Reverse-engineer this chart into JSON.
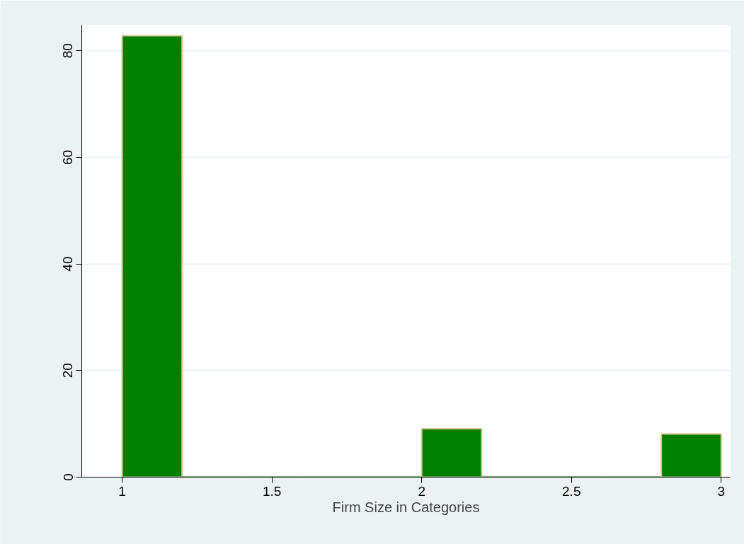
{
  "chart_data": {
    "type": "histogram",
    "xlabel": "Firm Size in Categories",
    "bins": [
      1,
      1.2,
      1.4,
      1.6,
      1.8,
      2,
      2.2,
      2.4,
      2.6,
      2.8,
      3
    ],
    "values": [
      82.8,
      0,
      0,
      0,
      0,
      9.1,
      0,
      0,
      0,
      8.1
    ],
    "color": "#007f00",
    "xlim": [
      0.865,
      3.03
    ],
    "ylim": [
      0,
      84.8
    ],
    "xticks": [
      1,
      1.5,
      2,
      2.5,
      3
    ],
    "yticks": [
      0,
      20,
      40,
      60,
      80
    ],
    "grid": "y"
  }
}
